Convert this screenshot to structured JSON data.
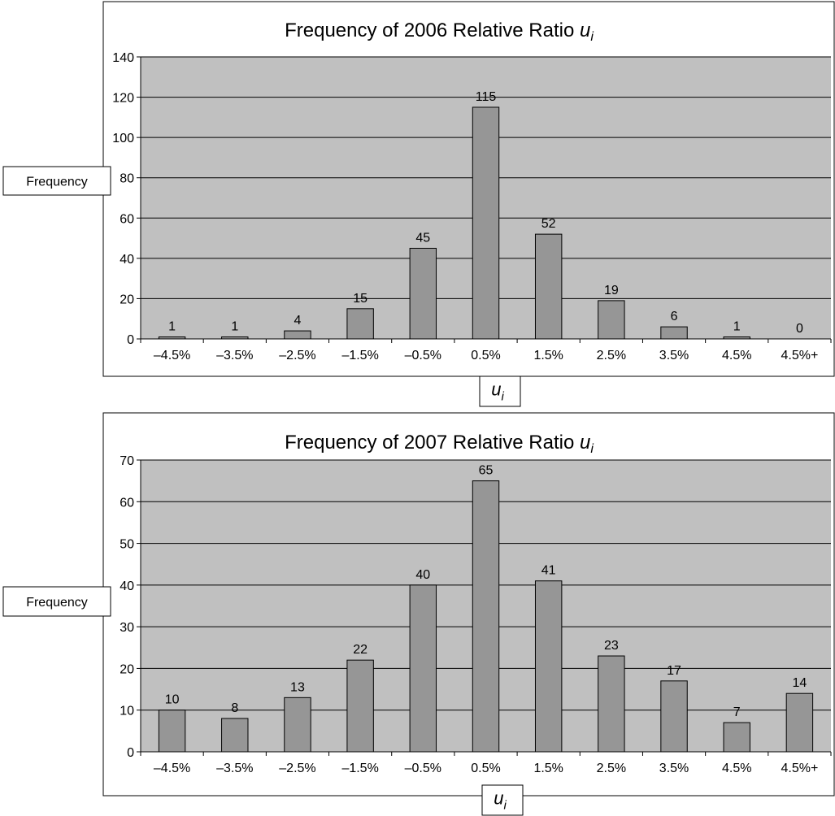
{
  "chart_data": [
    {
      "type": "bar",
      "title": "Frequency of 2006 Relative Ratio ",
      "title_var": "u",
      "title_sub": "i",
      "ylabel": "Frequency",
      "xlabel_var": "u",
      "xlabel_sub": "i",
      "ylim": [
        0,
        140
      ],
      "yticks": [
        "0",
        "20",
        "40",
        "60",
        "80",
        "100",
        "120",
        "140"
      ],
      "ytick_values": [
        0,
        20,
        40,
        60,
        80,
        100,
        120,
        140
      ],
      "categories": [
        "–4.5%",
        "–3.5%",
        "–2.5%",
        "–1.5%",
        "–0.5%",
        "0.5%",
        "1.5%",
        "2.5%",
        "3.5%",
        "4.5%",
        "4.5%+"
      ],
      "values": [
        1,
        1,
        4,
        15,
        45,
        115,
        52,
        19,
        6,
        1,
        0
      ],
      "value_labels": [
        "1",
        "1",
        "4",
        "15",
        "45",
        "115",
        "52",
        "19",
        "6",
        "1",
        "0"
      ],
      "grid": true,
      "legend": "none"
    },
    {
      "type": "bar",
      "title": "Frequency of 2007 Relative Ratio ",
      "title_var": "u",
      "title_sub": "i",
      "ylabel": "Frequency",
      "xlabel_var": "u",
      "xlabel_sub": "i",
      "ylim": [
        0,
        70
      ],
      "yticks": [
        "0",
        "10",
        "20",
        "30",
        "40",
        "50",
        "60",
        "70"
      ],
      "ytick_values": [
        0,
        10,
        20,
        30,
        40,
        50,
        60,
        70
      ],
      "categories": [
        "–4.5%",
        "–3.5%",
        "–2.5%",
        "–1.5%",
        "–0.5%",
        "0.5%",
        "1.5%",
        "2.5%",
        "3.5%",
        "4.5%",
        "4.5%+"
      ],
      "values": [
        10,
        8,
        13,
        22,
        40,
        65,
        41,
        23,
        17,
        7,
        14
      ],
      "value_labels": [
        "10",
        "8",
        "13",
        "22",
        "40",
        "65",
        "41",
        "23",
        "17",
        "7",
        "14"
      ],
      "grid": true,
      "legend": "none"
    }
  ],
  "colors": {
    "plot_area": "#c0c0c0",
    "bar_fill": "#969696",
    "bar_stroke": "#000000",
    "grid": "#000000"
  }
}
